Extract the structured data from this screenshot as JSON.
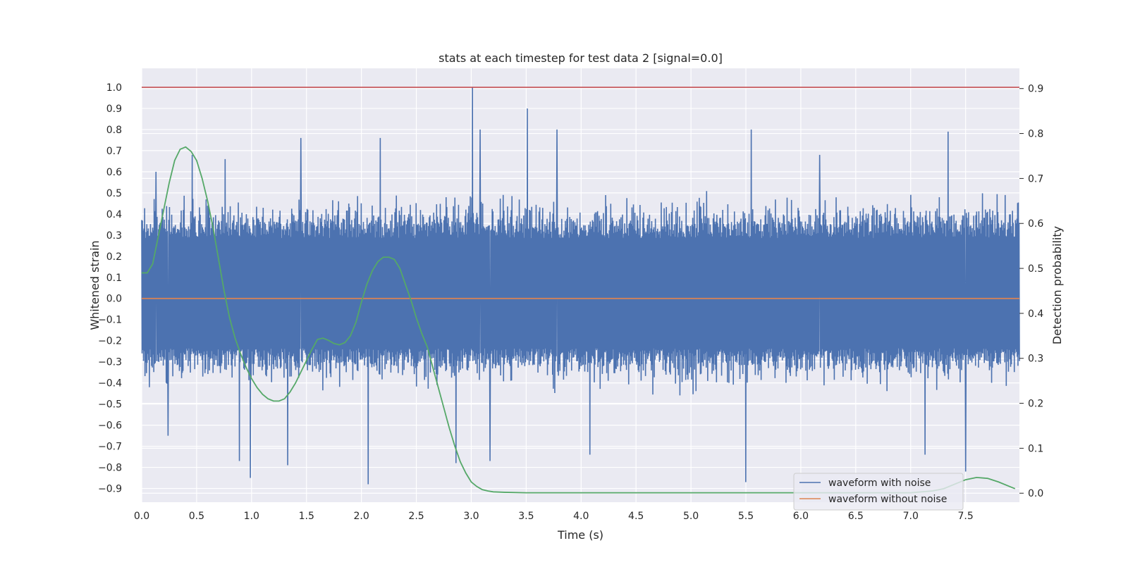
{
  "chart_data": {
    "type": "line",
    "title": "stats at each timestep for test data 2 [signal=0.0]",
    "xlabel": "Time (s)",
    "ylabel_left": "Whitened strain",
    "ylabel_right": "Detection probability",
    "xlim": [
      0.0,
      7.99
    ],
    "ylim_left": [
      -0.965,
      1.09
    ],
    "ylim_right": [
      -0.02,
      0.945
    ],
    "x_ticks": [
      "0.0",
      "0.5",
      "1.0",
      "1.5",
      "2.0",
      "2.5",
      "3.0",
      "3.5",
      "4.0",
      "4.5",
      "5.0",
      "5.5",
      "6.0",
      "6.5",
      "7.0",
      "7.5"
    ],
    "y_ticks_left": [
      "1.0",
      "0.9",
      "0.8",
      "0.7",
      "0.6",
      "0.5",
      "0.4",
      "0.3",
      "0.2",
      "0.1",
      "0.0",
      "−0.1",
      "−0.2",
      "−0.3",
      "−0.4",
      "−0.5",
      "−0.6",
      "−0.7",
      "−0.8",
      "−0.9"
    ],
    "y_ticks_right": [
      "0.9",
      "0.8",
      "0.7",
      "0.6",
      "0.5",
      "0.4",
      "0.3",
      "0.2",
      "0.1",
      "0.0"
    ],
    "grid": true,
    "legend_position": "lower-right",
    "legend": [
      "waveform with noise",
      "waveform without noise"
    ],
    "threshold_line": {
      "axis": "left",
      "y": 1.0,
      "color": "#c44e52"
    },
    "series": [
      {
        "name": "waveform with noise",
        "axis": "left",
        "color": "#4c72b0",
        "kind": "noise",
        "x_range": [
          0.0,
          7.99
        ],
        "typical_envelope": [
          -0.43,
          0.52
        ],
        "peaks": [
          {
            "x": 0.13,
            "y": 0.6
          },
          {
            "x": 0.46,
            "y": 0.68
          },
          {
            "x": 0.76,
            "y": 0.66
          },
          {
            "x": 1.45,
            "y": 0.76
          },
          {
            "x": 2.17,
            "y": 0.76
          },
          {
            "x": 3.01,
            "y": 1.0
          },
          {
            "x": 3.08,
            "y": 0.8
          },
          {
            "x": 3.51,
            "y": 0.9
          },
          {
            "x": 3.78,
            "y": 0.8
          },
          {
            "x": 5.55,
            "y": 0.8
          },
          {
            "x": 6.17,
            "y": 0.68
          },
          {
            "x": 7.34,
            "y": 0.79
          }
        ],
        "troughs": [
          {
            "x": 0.24,
            "y": -0.65
          },
          {
            "x": 0.89,
            "y": -0.77
          },
          {
            "x": 0.99,
            "y": -0.85
          },
          {
            "x": 1.33,
            "y": -0.79
          },
          {
            "x": 2.06,
            "y": -0.88
          },
          {
            "x": 2.86,
            "y": -0.78
          },
          {
            "x": 3.17,
            "y": -0.77
          },
          {
            "x": 4.08,
            "y": -0.74
          },
          {
            "x": 5.5,
            "y": -0.87
          },
          {
            "x": 7.13,
            "y": -0.74
          },
          {
            "x": 7.5,
            "y": -0.82
          }
        ]
      },
      {
        "name": "waveform without noise",
        "axis": "left",
        "color": "#dd8452",
        "x": [
          0.0,
          7.99
        ],
        "y": [
          0.0,
          0.0
        ]
      },
      {
        "name": "",
        "axis": "right",
        "color": "#55a868",
        "x": [
          0.0,
          0.05,
          0.1,
          0.15,
          0.2,
          0.25,
          0.3,
          0.35,
          0.4,
          0.45,
          0.5,
          0.55,
          0.6,
          0.65,
          0.7,
          0.75,
          0.8,
          0.85,
          0.9,
          0.95,
          1.0,
          1.05,
          1.1,
          1.15,
          1.2,
          1.25,
          1.3,
          1.35,
          1.4,
          1.45,
          1.5,
          1.55,
          1.6,
          1.65,
          1.7,
          1.75,
          1.8,
          1.85,
          1.9,
          1.95,
          2.0,
          2.05,
          2.1,
          2.15,
          2.2,
          2.25,
          2.3,
          2.35,
          2.4,
          2.45,
          2.5,
          2.55,
          2.6,
          2.65,
          2.7,
          2.75,
          2.8,
          2.85,
          2.9,
          2.95,
          3.0,
          3.05,
          3.1,
          3.15,
          3.2,
          3.3,
          3.5,
          4.0,
          5.0,
          6.0,
          6.5,
          7.0,
          7.2,
          7.3,
          7.4,
          7.5,
          7.6,
          7.7,
          7.8,
          7.9,
          7.95
        ],
        "y": [
          0.49,
          0.49,
          0.51,
          0.57,
          0.63,
          0.69,
          0.74,
          0.765,
          0.77,
          0.76,
          0.74,
          0.7,
          0.65,
          0.59,
          0.52,
          0.45,
          0.39,
          0.345,
          0.31,
          0.28,
          0.255,
          0.235,
          0.22,
          0.21,
          0.205,
          0.205,
          0.21,
          0.225,
          0.245,
          0.27,
          0.295,
          0.32,
          0.342,
          0.345,
          0.34,
          0.333,
          0.33,
          0.335,
          0.35,
          0.38,
          0.425,
          0.465,
          0.495,
          0.515,
          0.525,
          0.525,
          0.52,
          0.5,
          0.465,
          0.43,
          0.39,
          0.355,
          0.325,
          0.28,
          0.235,
          0.19,
          0.145,
          0.105,
          0.07,
          0.045,
          0.025,
          0.015,
          0.008,
          0.005,
          0.003,
          0.002,
          0.001,
          0.001,
          0.001,
          0.001,
          0.001,
          0.001,
          0.005,
          0.01,
          0.02,
          0.03,
          0.035,
          0.033,
          0.025,
          0.015,
          0.01
        ]
      }
    ]
  }
}
